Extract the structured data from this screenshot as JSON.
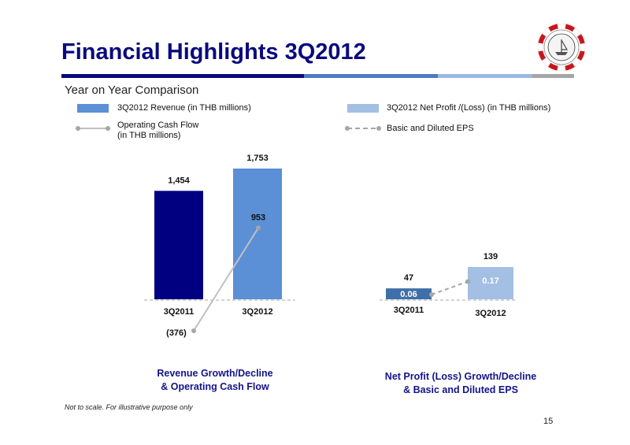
{
  "slide": {
    "title": "Financial Highlights 3Q2012",
    "subtitle": "Year on Year Comparison",
    "footnote": "Not to scale.  For illustrative purpose only",
    "page_number": "15",
    "title_bar_colors": [
      "#0a0a7e",
      "#4a7cc4",
      "#9ab9de",
      "#a6a6a6"
    ]
  },
  "legend": {
    "revenue": "3Q2012 Revenue (in THB millions)",
    "ocf_line1": "Operating Cash Flow",
    "ocf_line2": "(in THB millions)",
    "net_profit": "3Q2012 Net Profit /(Loss) (in THB millions)",
    "eps": "Basic and Diluted EPS"
  },
  "captions": {
    "left_line1": "Revenue Growth/Decline",
    "left_line2": "& Operating Cash Flow",
    "right_line1": "Net Profit (Loss) Growth/Decline",
    "right_line2": "& Basic and Diluted EPS"
  },
  "chart_data": [
    {
      "type": "bar",
      "categories": [
        "3Q2011",
        "3Q2012"
      ],
      "series": [
        {
          "values": [
            1454,
            1753
          ],
          "labels": [
            "1,454",
            "1,753"
          ],
          "colors": [
            "#000080",
            "#5b8fd6"
          ]
        },
        {
          "type": "line",
          "values": [
            -376,
            953
          ],
          "labels": [
            "(376)",
            "953"
          ],
          "color": "#c0c0c0"
        }
      ]
    },
    {
      "type": "bar",
      "categories": [
        "3Q2011",
        "3Q2012"
      ],
      "series": [
        {
          "values": [
            47,
            139
          ],
          "labels": [
            "47",
            "139"
          ],
          "colors": [
            "#3f6fa8",
            "#a3bfe3"
          ]
        },
        {
          "type": "line",
          "values": [
            0.06,
            0.17
          ],
          "labels": [
            "0.06",
            "0.17"
          ],
          "color": "#a6a6a6"
        }
      ]
    }
  ]
}
